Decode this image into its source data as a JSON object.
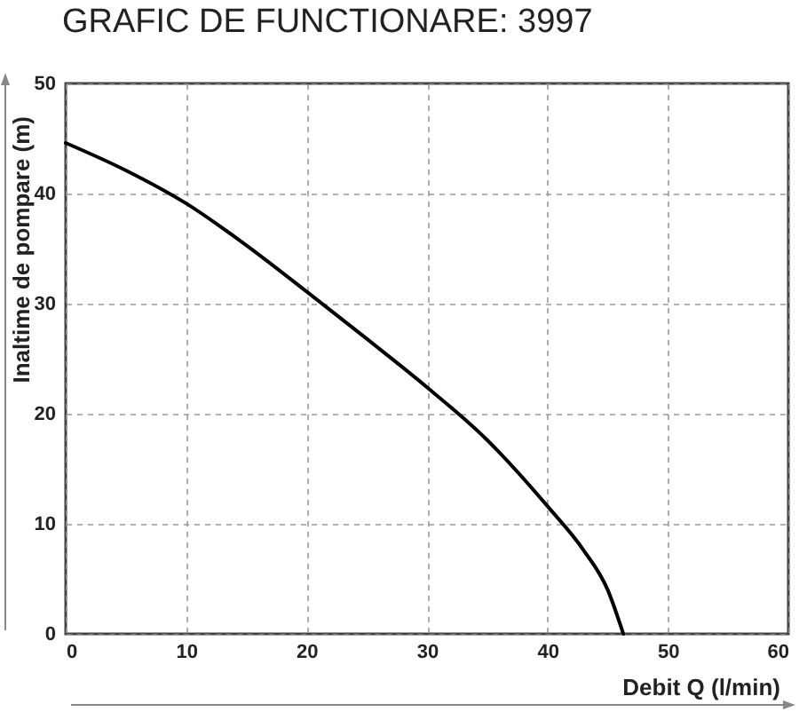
{
  "chart_data": {
    "type": "line",
    "title": "GRAFIC DE FUNCTIONARE: 3997",
    "xlabel": "Debit Q (l/min)",
    "ylabel": "Inaltime de pompare (m)",
    "x": [
      0,
      5,
      10,
      15,
      20,
      25,
      30,
      35,
      40,
      43,
      45,
      46.3
    ],
    "series": [
      {
        "color": "#000000",
        "values": [
          44.6,
          42.1,
          39.1,
          35.3,
          31.1,
          26.8,
          22.4,
          17.6,
          11.6,
          7.6,
          4.0,
          0
        ]
      }
    ],
    "xlim": [
      0,
      60
    ],
    "ylim": [
      0,
      50
    ],
    "xticks": [
      0,
      10,
      20,
      30,
      40,
      50,
      60
    ],
    "yticks": [
      0,
      10,
      20,
      30,
      40,
      50
    ],
    "grid": true,
    "line_style": "solid"
  }
}
